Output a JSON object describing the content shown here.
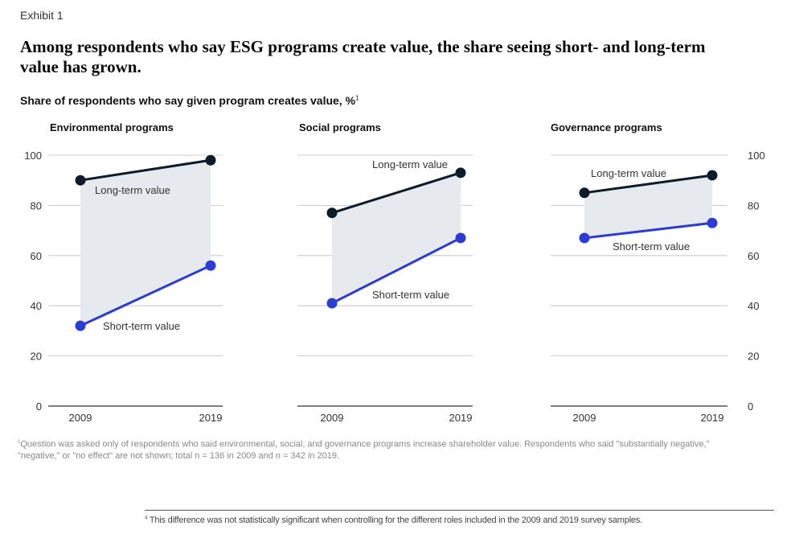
{
  "exhibit_label": "Exhibit 1",
  "title": "Among respondents who say ESG programs create value, the share seeing short- and long-term value has grown.",
  "subtitle": "Share of respondents who say given program creates value, %",
  "subtitle_mark": "1",
  "footnote_mark": "1",
  "footnote": "Question was asked only of respondents who said environmental, social, and governance programs increase shareholder value. Respondents who said \"substantially negative,\" \"negative,\" or \"no effect\" are not shown; total n = 136 in 2009 and n = 342 in 2019.",
  "note_mark": "4",
  "note": "This difference was not statistically significant when controlling for the different roles included in the 2009 and 2019 survey samples.",
  "colors": {
    "long_term": "#0d1b2a",
    "short_term": "#2a3bd6",
    "band": "#e6e9ed",
    "grid": "#bdbdbd",
    "axis": "#333333"
  },
  "chart_data": [
    {
      "type": "line",
      "title": "Environmental programs",
      "x": [
        "2009",
        "2019"
      ],
      "ylim": [
        0,
        100
      ],
      "yticks": [
        0,
        20,
        40,
        60,
        80,
        100
      ],
      "grid": true,
      "series": [
        {
          "name": "Long-term value",
          "values": [
            90,
            98
          ]
        },
        {
          "name": "Short-term value",
          "values": [
            32,
            56
          ]
        }
      ]
    },
    {
      "type": "line",
      "title": "Social programs",
      "x": [
        "2009",
        "2019"
      ],
      "ylim": [
        0,
        100
      ],
      "yticks": [
        0,
        20,
        40,
        60,
        80,
        100
      ],
      "grid": true,
      "series": [
        {
          "name": "Long-term value",
          "values": [
            77,
            93
          ]
        },
        {
          "name": "Short-term value",
          "values": [
            41,
            67
          ]
        }
      ]
    },
    {
      "type": "line",
      "title": "Governance programs",
      "x": [
        "2009",
        "2019"
      ],
      "ylim": [
        0,
        100
      ],
      "yticks": [
        0,
        20,
        40,
        60,
        80,
        100
      ],
      "grid": true,
      "series": [
        {
          "name": "Long-term value",
          "values": [
            85,
            92
          ]
        },
        {
          "name": "Short-term value",
          "values": [
            67,
            73
          ]
        }
      ]
    }
  ]
}
